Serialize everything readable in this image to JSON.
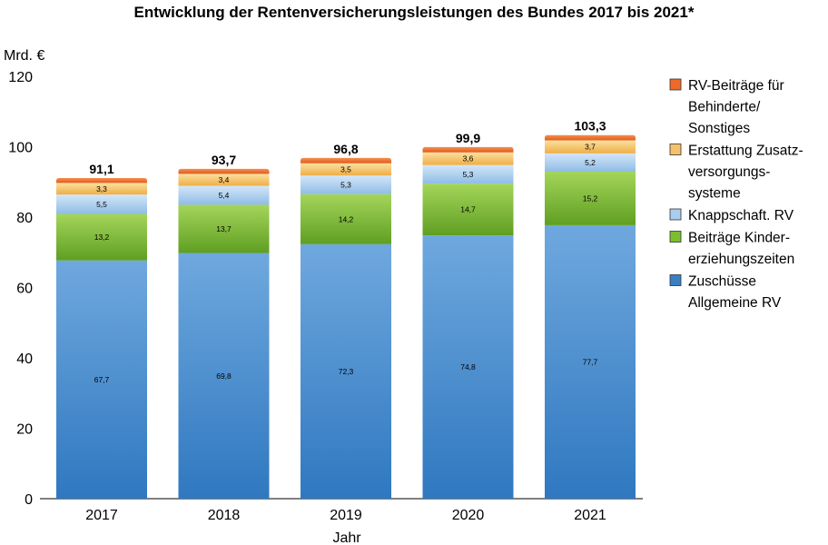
{
  "chart_data": {
    "type": "bar",
    "stacked": true,
    "title": "Entwicklung der Rentenversicherungsleistungen des Bundes 2017 bis 2021*",
    "ylabel": "Mrd. €",
    "xlabel": "Jahr",
    "ylim": [
      0,
      120
    ],
    "yticks": [
      "0",
      "20",
      "40",
      "60",
      "80",
      "100",
      "120"
    ],
    "categories": [
      "2017",
      "2018",
      "2019",
      "2020",
      "2021"
    ],
    "totals": [
      "91,1",
      "93,7",
      "96,8",
      "99,9",
      "103,3"
    ],
    "grid": false,
    "legend_position": "right",
    "series": [
      {
        "name": "Zuschüsse Allgemeine RV",
        "legend_lines": [
          "Zuschüsse",
          "Allgemeine RV"
        ],
        "color": "#3a7fc4",
        "values": [
          67.7,
          69.8,
          72.3,
          74.8,
          77.7
        ],
        "labels": [
          "67,7",
          "69,8",
          "72,3",
          "74,8",
          "77,7"
        ]
      },
      {
        "name": "Beiträge Kindererziehungszeiten",
        "legend_lines": [
          "Beiträge Kinder-",
          "erziehungszeiten"
        ],
        "color": "#7cbf2e",
        "values": [
          13.2,
          13.7,
          14.2,
          14.7,
          15.2
        ],
        "labels": [
          "13,2",
          "13,7",
          "14,2",
          "14,7",
          "15,2"
        ]
      },
      {
        "name": "Knappschaft. RV",
        "legend_lines": [
          "Knappschaft. RV"
        ],
        "color": "#a9cdee",
        "values": [
          5.5,
          5.4,
          5.3,
          5.3,
          5.2
        ],
        "labels": [
          "5,5",
          "5,4",
          "5,3",
          "5,3",
          "5,2"
        ]
      },
      {
        "name": "Erstattung Zusatzversorgungssysteme",
        "legend_lines": [
          "Erstattung Zusatz-",
          "versorgungs-",
          "systeme"
        ],
        "color": "#f5c26b",
        "values": [
          3.3,
          3.4,
          3.5,
          3.6,
          3.7
        ],
        "labels": [
          "3,3",
          "3,4",
          "3,5",
          "3,6",
          "3,7"
        ]
      },
      {
        "name": "RV-Beiträge für Behinderte/Sonstiges",
        "legend_lines": [
          "RV-Beiträge für",
          "Behinderte/",
          "Sonstiges"
        ],
        "color": "#ee6a2a",
        "values": [
          1.4,
          1.4,
          1.5,
          1.5,
          1.5
        ],
        "labels": [
          "",
          "",
          "",
          "",
          ""
        ]
      }
    ]
  }
}
